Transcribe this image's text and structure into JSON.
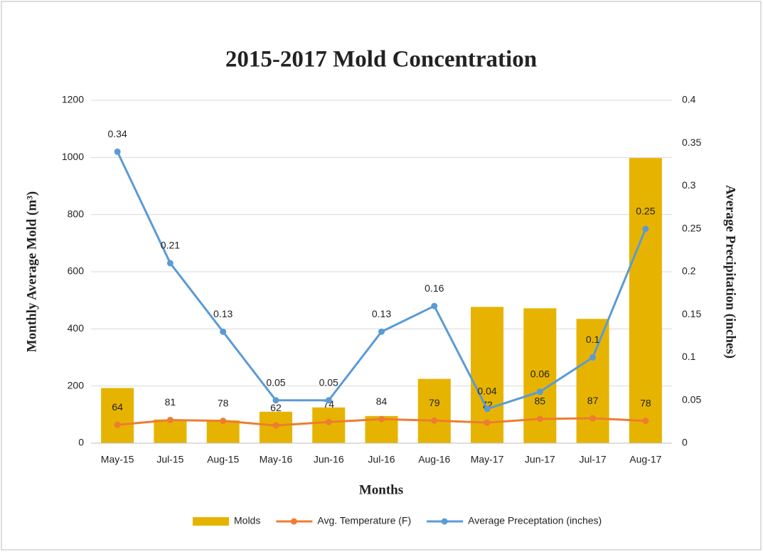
{
  "chart_data": {
    "type": "bar",
    "title": "2015-2017 Mold Concentration",
    "x_label": "Months",
    "y_label": "Monthly Average Mold (m³)",
    "y2_label": "Average Precipitation (inches)",
    "categories": [
      "May-15",
      "Jul-15",
      "Aug-15",
      "May-16",
      "Jun-16",
      "Jul-16",
      "Aug-16",
      "May-17",
      "Jun-17",
      "Jul-17",
      "Aug-17"
    ],
    "series": [
      {
        "name": "Molds",
        "type": "bar",
        "color": "#e6b400",
        "values": [
          193,
          83,
          80,
          110,
          125,
          95,
          225,
          477,
          472,
          435,
          998
        ]
      },
      {
        "name": "Avg. Temperature (F)",
        "type": "line",
        "color": "#ed7d31",
        "data_labels": true,
        "values": [
          64,
          81,
          78,
          62,
          74,
          84,
          79,
          72,
          85,
          87,
          78
        ]
      },
      {
        "name": "Average Preceptation (inches)",
        "type": "line",
        "axis": "y2",
        "color": "#5b9bd5",
        "data_labels": true,
        "values": [
          0.34,
          0.21,
          0.13,
          0.05,
          0.05,
          0.13,
          0.16,
          0.04,
          0.06,
          0.1,
          0.25
        ]
      }
    ],
    "ylim": [
      0,
      1200
    ],
    "yticks": [
      0,
      200,
      400,
      600,
      800,
      1000,
      1200
    ],
    "y2lim": [
      0,
      0.4
    ],
    "y2ticks": [
      0,
      0.05,
      0.1,
      0.15,
      0.2,
      0.25,
      0.3,
      0.35,
      0.4
    ],
    "grid": true,
    "legend": "bottom"
  }
}
